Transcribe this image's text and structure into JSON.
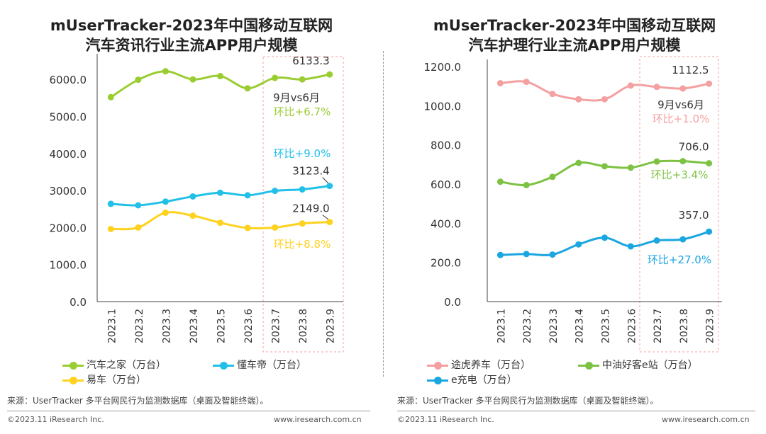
{
  "chart_data": [
    {
      "type": "line",
      "title": "mUserTracker-2023年中国移动互联网汽车资讯行业主流APP用户规模",
      "title_lines": [
        "mUserTracker-2023年中国移动互联网",
        "汽车资讯行业主流APP用户规模"
      ],
      "categories": [
        "2023.1",
        "2023.2",
        "2023.3",
        "2023.4",
        "2023.5",
        "2023.6",
        "2023.7",
        "2023.8",
        "2023.9"
      ],
      "ylim": [
        0,
        6500
      ],
      "yticks": [
        0,
        1000,
        2000,
        3000,
        4000,
        5000,
        6000
      ],
      "ytick_labels": [
        "0.0",
        "1000.0",
        "2000.0",
        "3000.0",
        "4000.0",
        "5000.0",
        "6000.0"
      ],
      "grid": false,
      "highlight_range": [
        "2023.7",
        "2023.9"
      ],
      "series": [
        {
          "name": "汽车之家（万台）",
          "color": "#9ACD32",
          "values": [
            5520,
            5990,
            6220,
            6000,
            6090,
            5760,
            6040,
            6000,
            6133.3
          ],
          "end_label": "6133.3"
        },
        {
          "name": "懂车帝（万台）",
          "color": "#22C0E8",
          "values": [
            2640,
            2600,
            2700,
            2840,
            2940,
            2870,
            2990,
            3030,
            3123.4
          ],
          "end_label": "3123.4"
        },
        {
          "name": "易车（万台）",
          "color": "#FFD21F",
          "values": [
            1960,
            2000,
            2400,
            2320,
            2130,
            1990,
            2000,
            2110,
            2149.0
          ],
          "end_label": "2149.0"
        }
      ],
      "annotations": [
        {
          "text": "9月vs6月",
          "color": "#333333"
        },
        {
          "text": "环比+6.7%",
          "color": "#9ACD32"
        },
        {
          "text": "环比+9.0%",
          "color": "#22C0E8"
        },
        {
          "text": "环比+8.8%",
          "color": "#FFD21F"
        }
      ],
      "legend": [
        {
          "label": "汽车之家（万台）",
          "color": "#9ACD32"
        },
        {
          "label": "懂车帝（万台）",
          "color": "#22C0E8"
        },
        {
          "label": "易车（万台）",
          "color": "#FFD21F"
        }
      ]
    },
    {
      "type": "line",
      "title": "mUserTracker-2023年中国移动互联网汽车护理行业主流APP用户规模",
      "title_lines": [
        "mUserTracker-2023年中国移动互联网",
        "汽车护理行业主流APP用户规模"
      ],
      "categories": [
        "2023.1",
        "2023.2",
        "2023.3",
        "2023.4",
        "2023.5",
        "2023.6",
        "2023.7",
        "2023.8",
        "2023.9"
      ],
      "ylim": [
        0,
        1200
      ],
      "yticks": [
        0,
        200,
        400,
        600,
        800,
        1000,
        1200
      ],
      "ytick_labels": [
        "0.0",
        "200.0",
        "400.0",
        "600.0",
        "800.0",
        "1000.0",
        "1200.0"
      ],
      "grid": false,
      "highlight_range": [
        "2023.7",
        "2023.9"
      ],
      "series": [
        {
          "name": "途虎养车（万台）",
          "color": "#F4A0A0",
          "values": [
            1115,
            1122,
            1060,
            1033,
            1033,
            1103,
            1096,
            1088,
            1112.5
          ],
          "end_label": "1112.5"
        },
        {
          "name": "中油好客e站（万台）",
          "color": "#7DC242",
          "values": [
            612,
            595,
            637,
            708,
            691,
            684,
            715,
            717,
            706.0
          ],
          "end_label": "706.0"
        },
        {
          "name": "e充电（万台）",
          "color": "#1AA6E0",
          "values": [
            238,
            243,
            240,
            292,
            326,
            282,
            312,
            318,
            357.0
          ],
          "end_label": "357.0"
        }
      ],
      "annotations": [
        {
          "text": "9月vs6月",
          "color": "#333333"
        },
        {
          "text": "环比+1.0%",
          "color": "#F4A0A0"
        },
        {
          "text": "环比+3.4%",
          "color": "#7DC242"
        },
        {
          "text": "环比+27.0%",
          "color": "#1AA6E0"
        }
      ],
      "legend": [
        {
          "label": "途虎养车（万台）",
          "color": "#F4A0A0"
        },
        {
          "label": "中油好客e站（万台）",
          "color": "#7DC242"
        },
        {
          "label": "e充电（万台）",
          "color": "#1AA6E0"
        }
      ]
    }
  ],
  "footer": {
    "source": "来源：UserTracker 多平台网民行为监测数据库（桌面及智能终端）。",
    "copyright": "©2023.11 iResearch Inc.",
    "website": "www.iresearch.com.cn"
  }
}
